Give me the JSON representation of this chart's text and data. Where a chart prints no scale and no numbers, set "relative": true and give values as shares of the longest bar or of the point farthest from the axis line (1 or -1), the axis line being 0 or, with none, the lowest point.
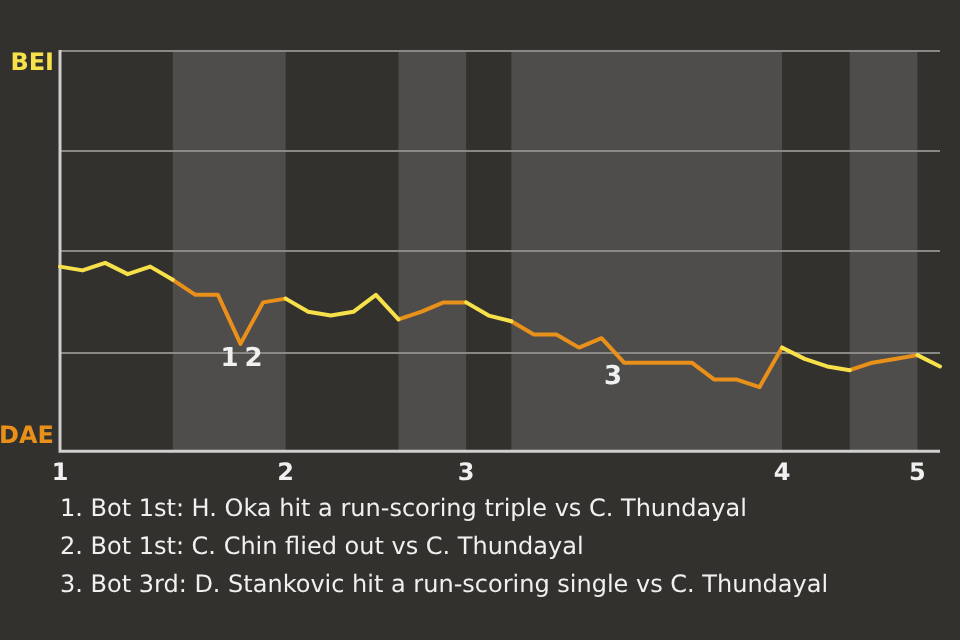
{
  "chart_data": {
    "type": "line",
    "relative": true,
    "categories": [
      "1",
      null,
      null,
      null,
      null,
      null,
      null,
      null,
      null,
      null,
      "2",
      null,
      null,
      null,
      null,
      null,
      null,
      null,
      "3",
      null,
      null,
      null,
      null,
      null,
      null,
      null,
      null,
      null,
      null,
      null,
      null,
      null,
      "4",
      null,
      null,
      null,
      null,
      null,
      "5",
      null
    ],
    "series": [
      {
        "name": "BEI",
        "color": "#f7e14b",
        "values": [
          0.98,
          0.96,
          1,
          0.94,
          0.98,
          0.91,
          null,
          null,
          null,
          null,
          0.81,
          0.74,
          0.72,
          0.74,
          0.83,
          0.7,
          null,
          null,
          0.79,
          0.72,
          0.69,
          null,
          null,
          null,
          null,
          null,
          null,
          null,
          null,
          null,
          null,
          null,
          0.55,
          0.49,
          0.45,
          0.43,
          null,
          null,
          0.51,
          0.45
        ]
      },
      {
        "name": "DAE",
        "color": "#e8901a",
        "values": [
          null,
          null,
          null,
          null,
          null,
          0.91,
          0.83,
          0.83,
          0.57,
          0.79,
          0.81,
          null,
          null,
          null,
          null,
          0.7,
          0.74,
          0.79,
          0.79,
          null,
          0.69,
          0.62,
          0.62,
          0.55,
          0.6,
          0.47,
          0.47,
          0.47,
          0.47,
          0.38,
          0.38,
          0.34,
          0.55,
          null,
          null,
          0.43,
          0.47,
          0.49,
          0.51,
          null
        ]
      }
    ],
    "ref_lines": [
      {
        "axis": "y",
        "value": 0.53,
        "color": "#8a8884"
      },
      {
        "axis": "y",
        "value": 1.07,
        "color": "#8a8884"
      },
      {
        "axis": "y",
        "value": 1.6,
        "color": "#8a8884"
      }
    ],
    "marker": "none",
    "line_style": "solid",
    "legend": false,
    "annotations": [
      {
        "text": "1",
        "y": 0.57
      },
      {
        "text": "2",
        "y": 0.57
      },
      {
        "text": "3",
        "y": 0.47
      },
      "1. Bot 1st: H. Oka hit a run-scoring triple vs C. Thundayal",
      "2. Bot 1st: C. Chin flied out vs C. Thundayal",
      "3. Bot 3rd: D. Stankovic hit a run-scoring single vs C. Thundayal"
    ]
  }
}
